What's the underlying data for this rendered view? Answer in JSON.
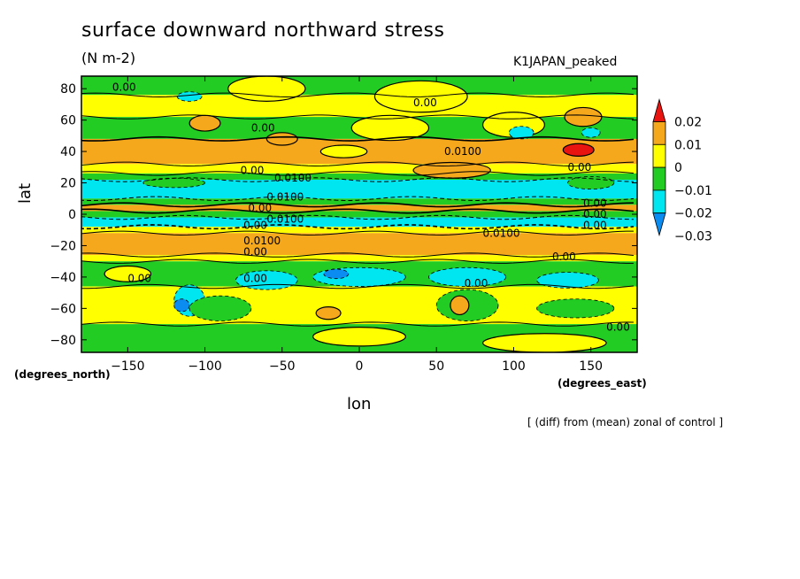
{
  "chart_data": {
    "type": "heatmap",
    "title": "surface downward northward stress",
    "units": "(N m-2)",
    "run_label": "K1JAPAN_peaked",
    "xlabel": "lon",
    "ylabel": "lat",
    "x_units": "(degrees_east)",
    "y_units": "(degrees_north)",
    "footnote": "[ (diff) from (mean) zonal of control ]",
    "xlim": [
      -180,
      180
    ],
    "ylim": [
      -88,
      88
    ],
    "x_ticks": [
      -150,
      -100,
      -50,
      0,
      50,
      100,
      150
    ],
    "y_ticks": [
      -80,
      -60,
      -40,
      -20,
      0,
      20,
      40,
      60,
      80
    ],
    "colorbar": {
      "levels": [
        "0.02",
        "0.01",
        "0",
        "-0.01",
        "-0.02",
        "-0.03"
      ],
      "colors": [
        "#e8140f",
        "#f5a81c",
        "#ffff00",
        "#22cc22",
        "#00e6f0",
        "#0a8cf0"
      ]
    },
    "bands": [
      {
        "lat_min": 76,
        "lat_max": 88,
        "value": -0.005
      },
      {
        "lat_min": 62,
        "lat_max": 76,
        "value": 0.005
      },
      {
        "lat_min": 48,
        "lat_max": 62,
        "value": -0.005
      },
      {
        "lat_min": 32,
        "lat_max": 48,
        "value": 0.012
      },
      {
        "lat_min": 26,
        "lat_max": 32,
        "value": 0.005
      },
      {
        "lat_min": 22,
        "lat_max": 26,
        "value": -0.005
      },
      {
        "lat_min": 10,
        "lat_max": 22,
        "value": -0.015
      },
      {
        "lat_min": 6,
        "lat_max": 10,
        "value": -0.005
      },
      {
        "lat_min": 2,
        "lat_max": 6,
        "value": 0.012
      },
      {
        "lat_min": -2,
        "lat_max": 2,
        "value": -0.005
      },
      {
        "lat_min": -8,
        "lat_max": -2,
        "value": -0.015
      },
      {
        "lat_min": -12,
        "lat_max": -8,
        "value": 0.005
      },
      {
        "lat_min": -26,
        "lat_max": -12,
        "value": 0.012
      },
      {
        "lat_min": -30,
        "lat_max": -26,
        "value": 0.005
      },
      {
        "lat_min": -46,
        "lat_max": -30,
        "value": -0.005
      },
      {
        "lat_min": -70,
        "lat_max": -46,
        "value": 0.005
      },
      {
        "lat_min": -88,
        "lat_max": -70,
        "value": -0.005
      }
    ],
    "features": [
      {
        "lon": -60,
        "lat": 80,
        "rlon": 25,
        "rlat": 8,
        "value": 0.005
      },
      {
        "lon": 40,
        "lat": 75,
        "rlon": 30,
        "rlat": 10,
        "value": 0.005
      },
      {
        "lon": -110,
        "lat": 75,
        "rlon": 8,
        "rlat": 3,
        "value": -0.015
      },
      {
        "lon": 20,
        "lat": 55,
        "rlon": 25,
        "rlat": 8,
        "value": 0.005
      },
      {
        "lon": 100,
        "lat": 57,
        "rlon": 20,
        "rlat": 8,
        "value": 0.005
      },
      {
        "lon": -100,
        "lat": 58,
        "rlon": 10,
        "rlat": 5,
        "value": 0.012
      },
      {
        "lon": 145,
        "lat": 62,
        "rlon": 12,
        "rlat": 6,
        "value": 0.012
      },
      {
        "lon": 105,
        "lat": 52,
        "rlon": 8,
        "rlat": 4,
        "value": -0.015
      },
      {
        "lon": 150,
        "lat": 52,
        "rlon": 6,
        "rlat": 3,
        "value": -0.015
      },
      {
        "lon": 142,
        "lat": 41,
        "rlon": 10,
        "rlat": 4,
        "value": 0.022
      },
      {
        "lon": -50,
        "lat": 48,
        "rlon": 10,
        "rlat": 4,
        "value": 0.012
      },
      {
        "lon": 60,
        "lat": 28,
        "rlon": 25,
        "rlat": 5,
        "value": 0.012
      },
      {
        "lon": -10,
        "lat": 40,
        "rlon": 15,
        "rlat": 4,
        "value": 0.005
      },
      {
        "lon": -150,
        "lat": -38,
        "rlon": 15,
        "rlat": 5,
        "value": 0.005
      },
      {
        "lon": -110,
        "lat": -55,
        "rlon": 10,
        "rlat": 10,
        "value": -0.015
      },
      {
        "lon": -115,
        "lat": -58,
        "rlon": 5,
        "rlat": 4,
        "value": -0.025
      },
      {
        "lon": -60,
        "lat": -42,
        "rlon": 20,
        "rlat": 6,
        "value": -0.015
      },
      {
        "lon": 0,
        "lat": -40,
        "rlon": 30,
        "rlat": 6,
        "value": -0.015
      },
      {
        "lon": 70,
        "lat": -40,
        "rlon": 25,
        "rlat": 6,
        "value": -0.015
      },
      {
        "lon": 135,
        "lat": -42,
        "rlon": 20,
        "rlat": 5,
        "value": -0.015
      },
      {
        "lon": -15,
        "lat": -38,
        "rlon": 8,
        "rlat": 3,
        "value": -0.025
      },
      {
        "lon": -90,
        "lat": -60,
        "rlon": 20,
        "rlat": 8,
        "value": -0.005
      },
      {
        "lon": 70,
        "lat": -58,
        "rlon": 20,
        "rlat": 10,
        "value": -0.005
      },
      {
        "lon": 140,
        "lat": -60,
        "rlon": 25,
        "rlat": 6,
        "value": -0.005
      },
      {
        "lon": -20,
        "lat": -63,
        "rlon": 8,
        "rlat": 4,
        "value": 0.012
      },
      {
        "lon": 65,
        "lat": -58,
        "rlon": 6,
        "rlat": 6,
        "value": 0.012
      },
      {
        "lon": 0,
        "lat": -78,
        "rlon": 30,
        "rlat": 6,
        "value": 0.005
      },
      {
        "lon": 120,
        "lat": -82,
        "rlon": 40,
        "rlat": 6,
        "value": 0.005
      },
      {
        "lon": 150,
        "lat": 20,
        "rlon": 15,
        "rlat": 4,
        "value": -0.005
      },
      {
        "lon": -120,
        "lat": 20,
        "rlon": 20,
        "rlat": 3,
        "value": -0.005
      }
    ],
    "contour_labels": [
      {
        "lon": -160,
        "lat": 81,
        "text": "0.00"
      },
      {
        "lon": 35,
        "lat": 71,
        "text": "0.00"
      },
      {
        "lon": -70,
        "lat": 55,
        "text": "0.00"
      },
      {
        "lon": 55,
        "lat": 40,
        "text": "0.0100"
      },
      {
        "lon": 135,
        "lat": 30,
        "text": "0.00"
      },
      {
        "lon": -77,
        "lat": 28,
        "text": "0.00"
      },
      {
        "lon": -55,
        "lat": 23,
        "text": "0.0100"
      },
      {
        "lon": -60,
        "lat": 11,
        "text": "0.0100"
      },
      {
        "lon": -72,
        "lat": 4,
        "text": "0.00"
      },
      {
        "lon": 145,
        "lat": 7,
        "text": "0.00"
      },
      {
        "lon": 145,
        "lat": 0,
        "text": "0.00"
      },
      {
        "lon": 145,
        "lat": -7,
        "text": "0.00"
      },
      {
        "lon": -75,
        "lat": -7,
        "text": "0.00"
      },
      {
        "lon": -60,
        "lat": -3,
        "text": "0.0100"
      },
      {
        "lon": 80,
        "lat": -12,
        "text": "0.0100"
      },
      {
        "lon": -75,
        "lat": -17,
        "text": "0.0100"
      },
      {
        "lon": -75,
        "lat": -24,
        "text": "0.00"
      },
      {
        "lon": 125,
        "lat": -27,
        "text": "0.00"
      },
      {
        "lon": -150,
        "lat": -41,
        "text": "0.00"
      },
      {
        "lon": -75,
        "lat": -41,
        "text": "0.00"
      },
      {
        "lon": 68,
        "lat": -44,
        "text": "0.00"
      },
      {
        "lon": 160,
        "lat": -72,
        "text": "0.00"
      }
    ]
  }
}
